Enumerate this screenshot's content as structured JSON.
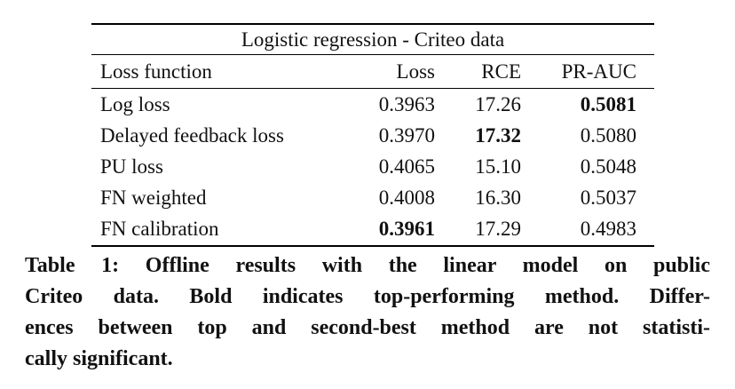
{
  "table": {
    "title": "Logistic regression - Criteo data",
    "columns": {
      "name": "Loss function",
      "loss": "Loss",
      "rce": "RCE",
      "prauc": "PR-AUC"
    },
    "rows": [
      {
        "name": "Log loss",
        "loss": "0.3963",
        "rce": "17.26",
        "prauc": "0.5081",
        "bold": "prauc"
      },
      {
        "name": "Delayed feedback loss",
        "loss": "0.3970",
        "rce": "17.32",
        "prauc": "0.5080",
        "bold": "rce"
      },
      {
        "name": "PU loss",
        "loss": "0.4065",
        "rce": "15.10",
        "prauc": "0.5048",
        "bold": ""
      },
      {
        "name": "FN weighted",
        "loss": "0.4008",
        "rce": "16.30",
        "prauc": "0.5037",
        "bold": ""
      },
      {
        "name": "FN calibration",
        "loss": "0.3961",
        "rce": "17.29",
        "prauc": "0.4983",
        "bold": "loss"
      }
    ]
  },
  "caption": {
    "lines": [
      "Table 1: Offline results with the linear model on public",
      "Criteo data. Bold indicates top-performing method. Differ-",
      "ences between top and second-best method are not statisti-",
      "cally significant."
    ]
  }
}
